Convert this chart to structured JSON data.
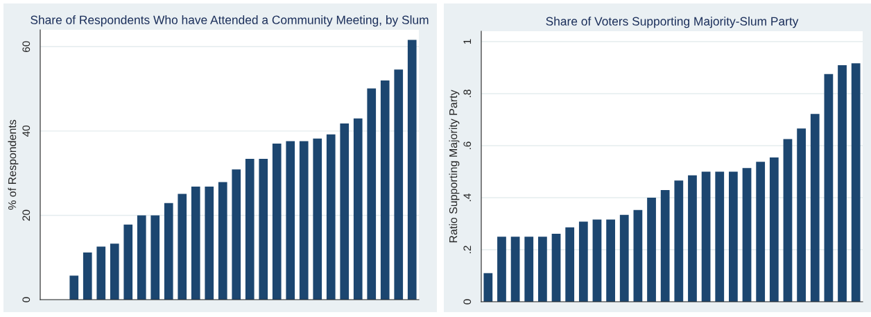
{
  "chart_data": [
    {
      "type": "bar",
      "title": "Share of Respondents Who have Attended a Community Meeting, by Slum",
      "ylabel": "% of Respondents",
      "categories": [
        null,
        null,
        null,
        null,
        null,
        null,
        null,
        null,
        null,
        null,
        null,
        null,
        null,
        null,
        null,
        null,
        null,
        null,
        null,
        null,
        null,
        null,
        null,
        null,
        null,
        null,
        null,
        null
      ],
      "values": [
        0,
        0,
        5.7,
        11.2,
        12.6,
        13.3,
        17.8,
        20,
        20,
        22.9,
        25.1,
        26.8,
        26.8,
        27.9,
        30.9,
        33.4,
        33.4,
        37.0,
        37.6,
        37.6,
        38.2,
        39.2,
        41.8,
        43.0,
        50.1,
        52.0,
        54.6,
        61.6
      ],
      "color": "#1c4670",
      "ylim": [
        0,
        64
      ],
      "yticks": [
        0,
        20,
        40,
        60
      ],
      "grid": "y",
      "legend": false
    },
    {
      "type": "bar",
      "title": "Share of Voters Supporting Majority-Slum Party",
      "ylabel": "Ratio Supporting Majority Party",
      "categories": [
        null,
        null,
        null,
        null,
        null,
        null,
        null,
        null,
        null,
        null,
        null,
        null,
        null,
        null,
        null,
        null,
        null,
        null,
        null,
        null,
        null,
        null,
        null,
        null,
        null,
        null,
        null,
        null
      ],
      "values": [
        0.11,
        0.25,
        0.25,
        0.25,
        0.25,
        0.261,
        0.286,
        0.308,
        0.316,
        0.316,
        0.334,
        0.353,
        0.4,
        0.429,
        0.466,
        0.486,
        0.5,
        0.5,
        0.5,
        0.514,
        0.538,
        0.555,
        0.625,
        0.666,
        0.722,
        0.875,
        0.909,
        0.917
      ],
      "color": "#1c4670",
      "ylim": [
        0,
        1.04
      ],
      "yticks": [
        0,
        {
          "value": 0.2,
          "label": ".2"
        },
        {
          "value": 0.4,
          "label": ".4"
        },
        {
          "value": 0.6,
          "label": ".6"
        },
        {
          "value": 0.8,
          "label": ".8"
        },
        1
      ],
      "grid": "y",
      "legend": false
    }
  ]
}
